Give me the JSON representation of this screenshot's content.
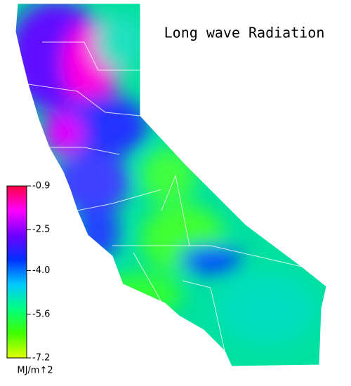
{
  "title": "Long wave Radiation",
  "colorbar": {
    "lim": [
      -0.9,
      -7.2
    ],
    "ticks": [
      -0.9,
      -2.5,
      {
        "value": -4,
        "label": "-4.0"
      },
      -5.6,
      -7.2
    ],
    "colors": [
      "#ff0040",
      "#ff00ff",
      "#7000ff",
      "#0030ff",
      "#00c8ff",
      "#00ff80",
      "#40ff00",
      "#e0ff00"
    ],
    "unit": "MJ/m↑2"
  }
}
